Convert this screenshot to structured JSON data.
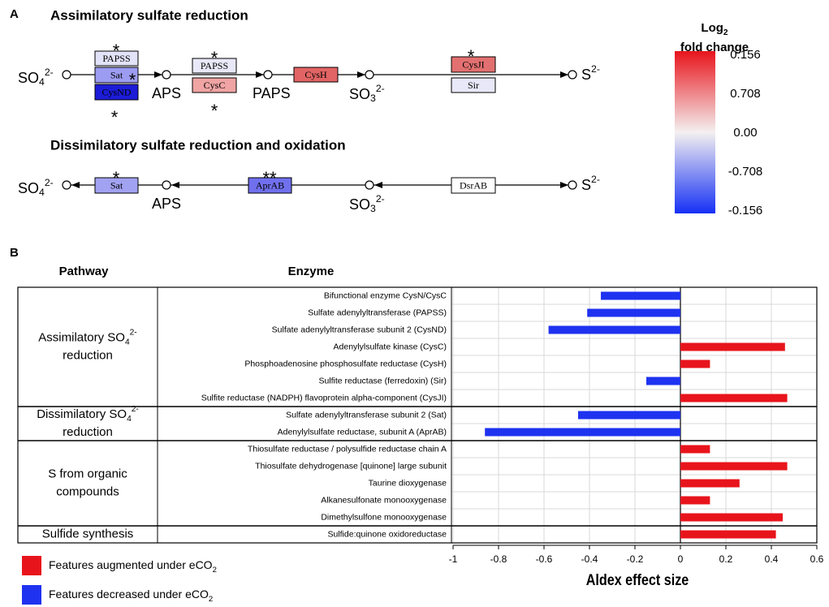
{
  "panel_a": {
    "label": "A",
    "assimilatory": {
      "title": "Assimilatory sulfate reduction",
      "compounds": [
        {
          "base": "SO",
          "sub": "4",
          "sup": "2-"
        },
        {
          "base": "APS"
        },
        {
          "base": "PAPS"
        },
        {
          "base": "SO",
          "sub": "3",
          "sup": "2-"
        },
        {
          "base": "S",
          "sup": "2-"
        }
      ],
      "enzymes": [
        {
          "label": "PAPSS",
          "color": "#e2e2f8",
          "mark": "*"
        },
        {
          "label": "Sat",
          "color": "#9c9cf2",
          "mark": "*"
        },
        {
          "label": "CysND",
          "color": "#1c1cd8",
          "mark": "*"
        },
        {
          "label": "PAPSS",
          "color": "#e8e8f8",
          "mark": "*"
        },
        {
          "label": "CysC",
          "color": "#f0a4a4",
          "mark": "*"
        },
        {
          "label": "CysH",
          "color": "#e26464"
        },
        {
          "label": "CysJI",
          "color": "#e27070",
          "mark": "*"
        },
        {
          "label": "Sir",
          "color": "#e8e8f8"
        }
      ]
    },
    "dissimilatory": {
      "title": "Dissimilatory sulfate reduction and oxidation",
      "compounds": [
        {
          "base": "SO",
          "sub": "4",
          "sup": "2-"
        },
        {
          "base": "APS"
        },
        {
          "base": "SO",
          "sub": "3",
          "sup": "2-"
        },
        {
          "base": "S",
          "sup": "2-"
        }
      ],
      "enzymes": [
        {
          "label": "Sat",
          "color": "#a2a2f2",
          "mark": "*"
        },
        {
          "label": "AprAB",
          "color": "#7070ee",
          "mark": "**"
        },
        {
          "label": "DsrAB",
          "color": "#ffffff"
        }
      ]
    },
    "colorbar": {
      "title": "Log",
      "title_sub": "2",
      "title2": "fold change",
      "ticks": [
        0.156,
        0.708,
        {
          "value": 0,
          "label": "0.00"
        },
        -0.708,
        -0.156
      ],
      "colors": [
        "#e8141c",
        "#f4f0f0",
        "#1530f5"
      ]
    }
  },
  "chart_data": {
    "type": "bar",
    "orientation": "horizontal",
    "panel_label": "B",
    "headers": [
      "Pathway",
      "Enzyme"
    ],
    "groups": [
      {
        "name": {
          "label": "Assimilatory SO",
          "sub": "4",
          "sup": "2-",
          "label2": "reduction"
        },
        "categories": [
          "Bifunctional enzyme CysN/CysC",
          "Sulfate adenylyltransferase (PAPSS)",
          "Sulfate adenylyltransferase subunit 2 (CysND)",
          "Adenylylsulfate kinase (CysC)",
          "Phosphoadenosine phosphosulfate reductase (CysH)",
          "Sulfite reductase (ferredoxin) (Sir)",
          "Sulfite reductase (NADPH) flavoprotein alpha-component (CysJI)"
        ],
        "values": [
          -0.35,
          -0.41,
          -0.58,
          0.46,
          0.13,
          -0.15,
          0.47
        ]
      },
      {
        "name": {
          "label": "Dissimilatory SO",
          "sub": "4",
          "sup": "2-",
          "label2": "reduction"
        },
        "categories": [
          "Sulfate adenylyltransferase subunit 2 (Sat)",
          "Adenylylsulfate reductase, subunit A (AprAB)"
        ],
        "values": [
          -0.45,
          -0.86
        ]
      },
      {
        "name": {
          "label": "S from organic",
          "label2": "compounds"
        },
        "categories": [
          "Thiosulfate reductase / polysulfide reductase chain A",
          "Thiosulfate dehydrogenase [quinone] large subunit",
          "Taurine dioxygenase",
          "Alkanesulfonate monooxygenase",
          "Dimethylsulfone monooxygenase"
        ],
        "values": [
          0.13,
          0.47,
          0.26,
          0.13,
          0.45
        ]
      },
      {
        "name": {
          "label": "Sulfide synthesis"
        },
        "categories": [
          "Sulfide:quinone oxidoreductase"
        ],
        "values": [
          0.42
        ]
      }
    ],
    "xlim": [
      -1,
      0.6
    ],
    "xticks": [
      -1,
      -0.8,
      -0.6,
      -0.4,
      -0.2,
      0,
      0.2,
      0.4,
      0.6
    ],
    "xlabel": "Aldex effect size",
    "grid": true,
    "legend": [
      {
        "label": "Features augmented under eCO",
        "sub": "2",
        "color": "#e8141c"
      },
      {
        "label": "Features decreased under eCO",
        "sub": "2",
        "color": "#1f32f0"
      }
    ]
  }
}
